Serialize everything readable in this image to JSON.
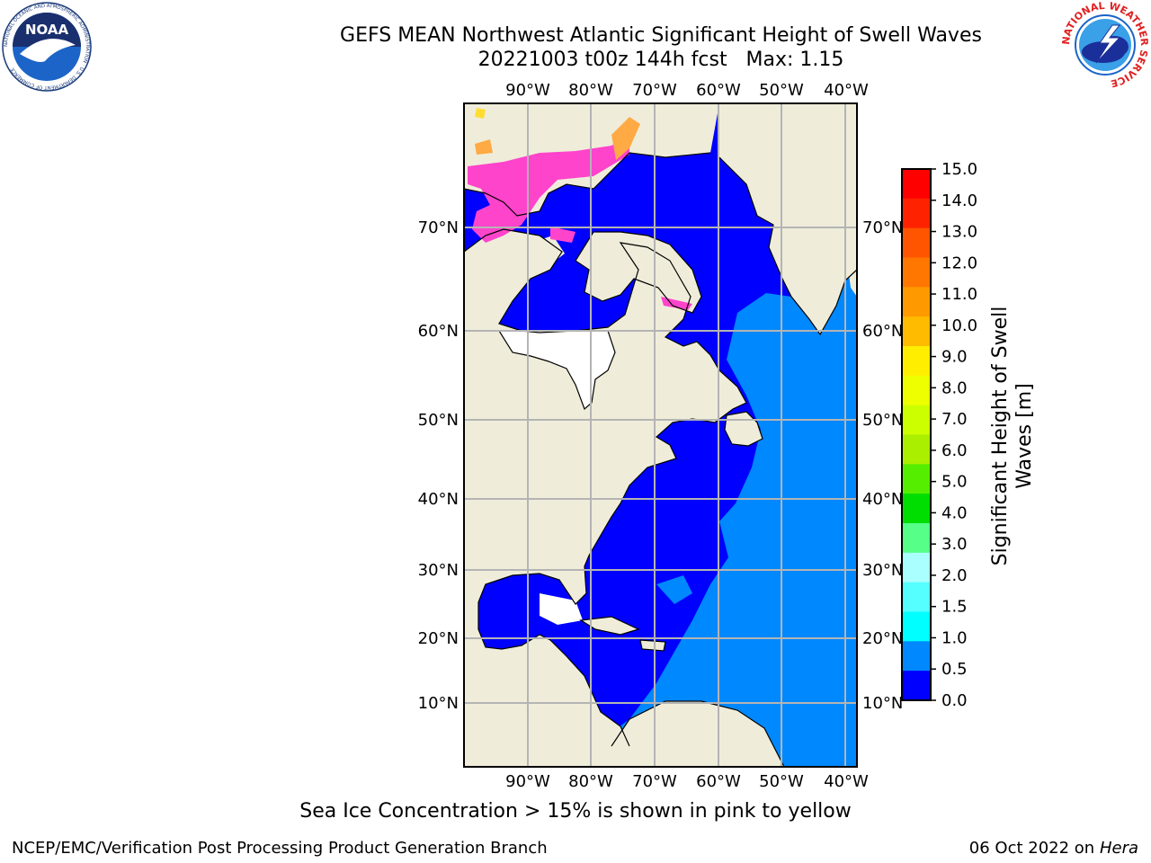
{
  "title_line1": "GEFS MEAN Northwest Atlantic Significant Height of Swell Waves",
  "title_line2": "20221003 t00z 144h fcst   Max: 1.15",
  "lon_ticks": [
    "90°W",
    "80°W",
    "70°W",
    "60°W",
    "50°W",
    "40°W"
  ],
  "lat_ticks": [
    "70°N",
    "60°N",
    "50°N",
    "40°N",
    "30°N",
    "20°N",
    "10°N"
  ],
  "colorbar": {
    "label": "Significant Height of Swell Waves [m]",
    "ticks": [
      "15.0",
      "14.0",
      "13.0",
      "12.0",
      "11.0",
      "10.0",
      "9.0",
      "8.0",
      "7.0",
      "6.0",
      "5.0",
      "4.0",
      "3.0",
      "2.0",
      "1.5",
      "1.0",
      "0.5",
      "0.0"
    ],
    "colors": [
      "#ff0000",
      "#ff2200",
      "#ff5500",
      "#ff7700",
      "#ff9900",
      "#ffbb00",
      "#ffee00",
      "#eeff00",
      "#ccff00",
      "#aaee00",
      "#55ee00",
      "#00dd00",
      "#55ff88",
      "#aaffff",
      "#55ffff",
      "#00ffff",
      "#0088ff",
      "#0000ff"
    ]
  },
  "colors": {
    "land": "#efedda",
    "ocean_low": "#0000ff",
    "ocean_mid": "#0088ff",
    "ice_pink": "#ff44cc",
    "ice_orange": "#ffaa44",
    "grid": "#b4b4b4"
  },
  "caption": "Sea Ice Concentration > 15% is shown in pink to yellow",
  "footer_left": "NCEP/EMC/Verification Post Processing Product Generation Branch",
  "footer_right_date": "06 Oct 2022 on",
  "footer_right_host": "Hera",
  "logos": {
    "noaa_text": "NOAA",
    "noaa_ring": "NATIONAL OCEANIC AND ATMOSPHERIC ADMINISTRATION · U.S. DEPARTMENT OF COMMERCE",
    "nws_ring": "NATIONAL WEATHER SERVICE"
  }
}
